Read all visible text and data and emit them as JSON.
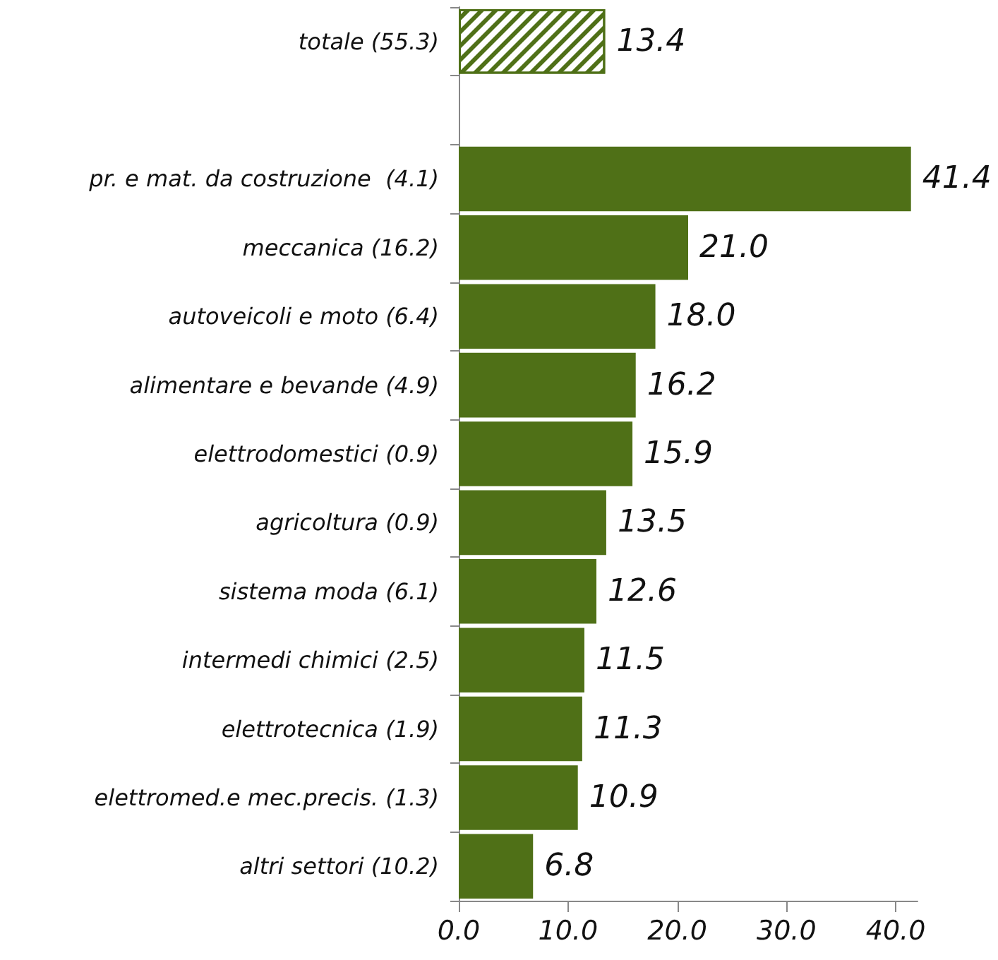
{
  "chart_data": {
    "type": "bar",
    "orientation": "horizontal",
    "categories": [
      "totale (55.3)",
      null,
      "pr. e mat. da costruzione  (4.1)",
      "meccanica (16.2)",
      "autoveicoli e moto (6.4)",
      "alimentare e bevande (4.9)",
      "elettrodomestici (0.9)",
      "agricoltura (0.9)",
      "sistema moda (6.1)",
      "intermedi chimici (2.5)",
      "elettrotecnica (1.9)",
      "elettromed.e mec.precis. (1.3)",
      "altri settori (10.2)"
    ],
    "values": [
      13.4,
      null,
      41.4,
      21.0,
      18.0,
      16.2,
      15.9,
      13.5,
      12.6,
      11.5,
      11.3,
      10.9,
      6.8
    ],
    "value_labels": [
      "13.4",
      null,
      "41.4",
      "21.0",
      "18.0",
      "16.2",
      "15.9",
      "13.5",
      "12.6",
      "11.5",
      "11.3",
      "10.9",
      "6.8"
    ],
    "color": "#4f7017",
    "colors": [
      "#ffffff",
      null,
      "#4f7017",
      "#4f7017",
      "#4f7017",
      "#4f7017",
      "#4f7017",
      "#4f7017",
      "#4f7017",
      "#4f7017",
      "#4f7017",
      "#4f7017",
      "#4f7017"
    ],
    "xlim": [
      0,
      42
    ],
    "xticks": [
      {
        "value": 0,
        "label": "0.0"
      },
      {
        "value": 10,
        "label": "10.0"
      },
      {
        "value": 20,
        "label": "20.0"
      },
      {
        "value": 30,
        "label": "30.0"
      },
      {
        "value": 40,
        "label": "40.0"
      }
    ],
    "grid": false
  }
}
